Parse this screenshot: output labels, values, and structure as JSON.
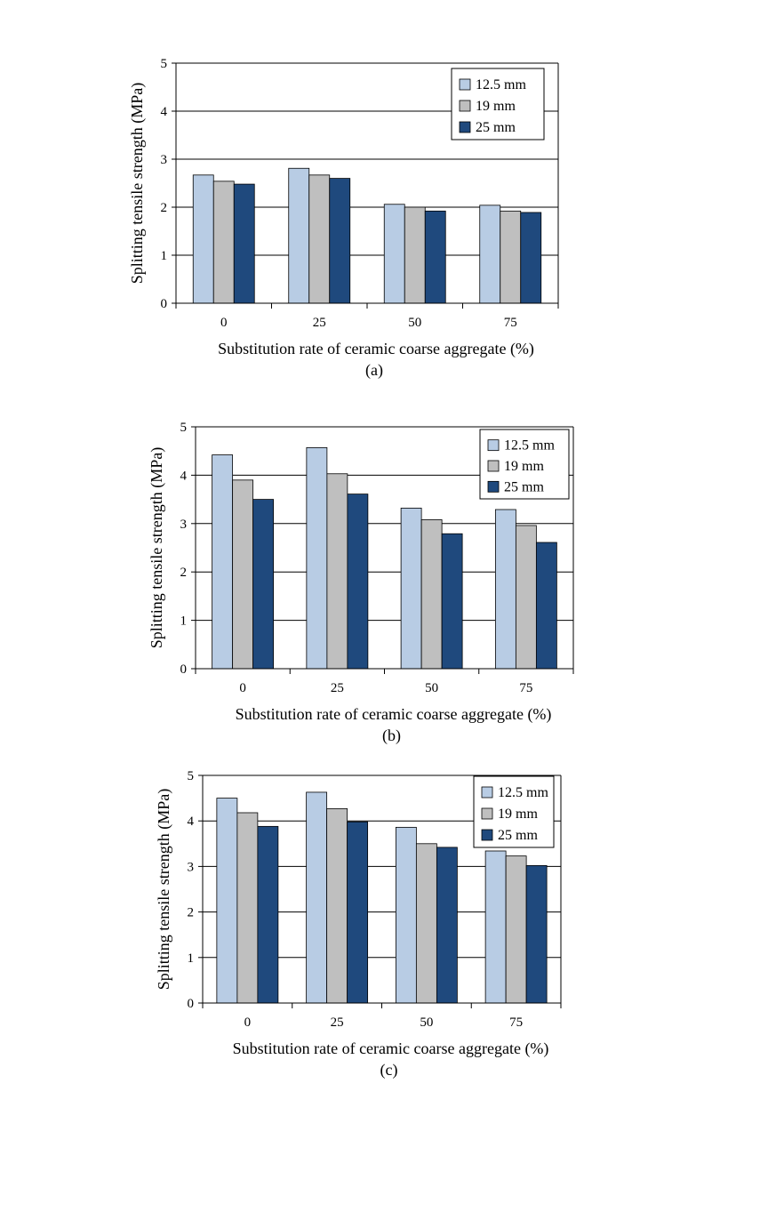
{
  "chart_data": [
    {
      "type": "bar",
      "panel_label": "(a)",
      "categories": [
        "0",
        "25",
        "50",
        "75"
      ],
      "series": [
        {
          "name": "12.5 mm",
          "values": [
            2.67,
            2.81,
            2.06,
            2.04
          ]
        },
        {
          "name": "19 mm",
          "values": [
            2.54,
            2.67,
            2.0,
            1.92
          ]
        },
        {
          "name": "25 mm",
          "values": [
            2.48,
            2.6,
            1.92,
            1.89
          ]
        }
      ],
      "xlabel": "Substitution rate of ceramic coarse aggregate (%)",
      "ylabel": "Splitting tensile strength (MPa)",
      "ylim": [
        0,
        5
      ],
      "yticks": [
        0,
        1,
        2,
        3,
        4,
        5
      ],
      "grid": true,
      "legend_position": "top-right"
    },
    {
      "type": "bar",
      "panel_label": "(b)",
      "categories": [
        "0",
        "25",
        "50",
        "75"
      ],
      "series": [
        {
          "name": "12.5 mm",
          "values": [
            4.42,
            4.57,
            3.32,
            3.29
          ]
        },
        {
          "name": "19 mm",
          "values": [
            3.9,
            4.03,
            3.08,
            2.96
          ]
        },
        {
          "name": "25 mm",
          "values": [
            3.5,
            3.61,
            2.79,
            2.61
          ]
        }
      ],
      "xlabel": "Substitution rate of ceramic coarse aggregate (%)",
      "ylabel": "Splitting tensile strength (MPa)",
      "ylim": [
        0,
        5
      ],
      "yticks": [
        0,
        1,
        2,
        3,
        4,
        5
      ],
      "grid": true,
      "legend_position": "top-right"
    },
    {
      "type": "bar",
      "panel_label": "(c)",
      "categories": [
        "0",
        "25",
        "50",
        "75"
      ],
      "series": [
        {
          "name": "12.5 mm",
          "values": [
            4.5,
            4.63,
            3.86,
            3.34
          ]
        },
        {
          "name": "19 mm",
          "values": [
            4.18,
            4.27,
            3.5,
            3.23
          ]
        },
        {
          "name": "25 mm",
          "values": [
            3.88,
            3.98,
            3.42,
            3.02
          ]
        }
      ],
      "xlabel": "Substitution rate of ceramic coarse aggregate (%)",
      "ylabel": "Splitting tensile strength (MPa)",
      "ylim": [
        0,
        5
      ],
      "yticks": [
        0,
        1,
        2,
        3,
        4,
        5
      ],
      "grid": true,
      "legend_position": "top-right"
    }
  ],
  "colors": {
    "series": [
      "#b8cce4",
      "#bfbfbf",
      "#1f497d"
    ],
    "bar_stroke": "#000000",
    "grid": "#000000"
  }
}
